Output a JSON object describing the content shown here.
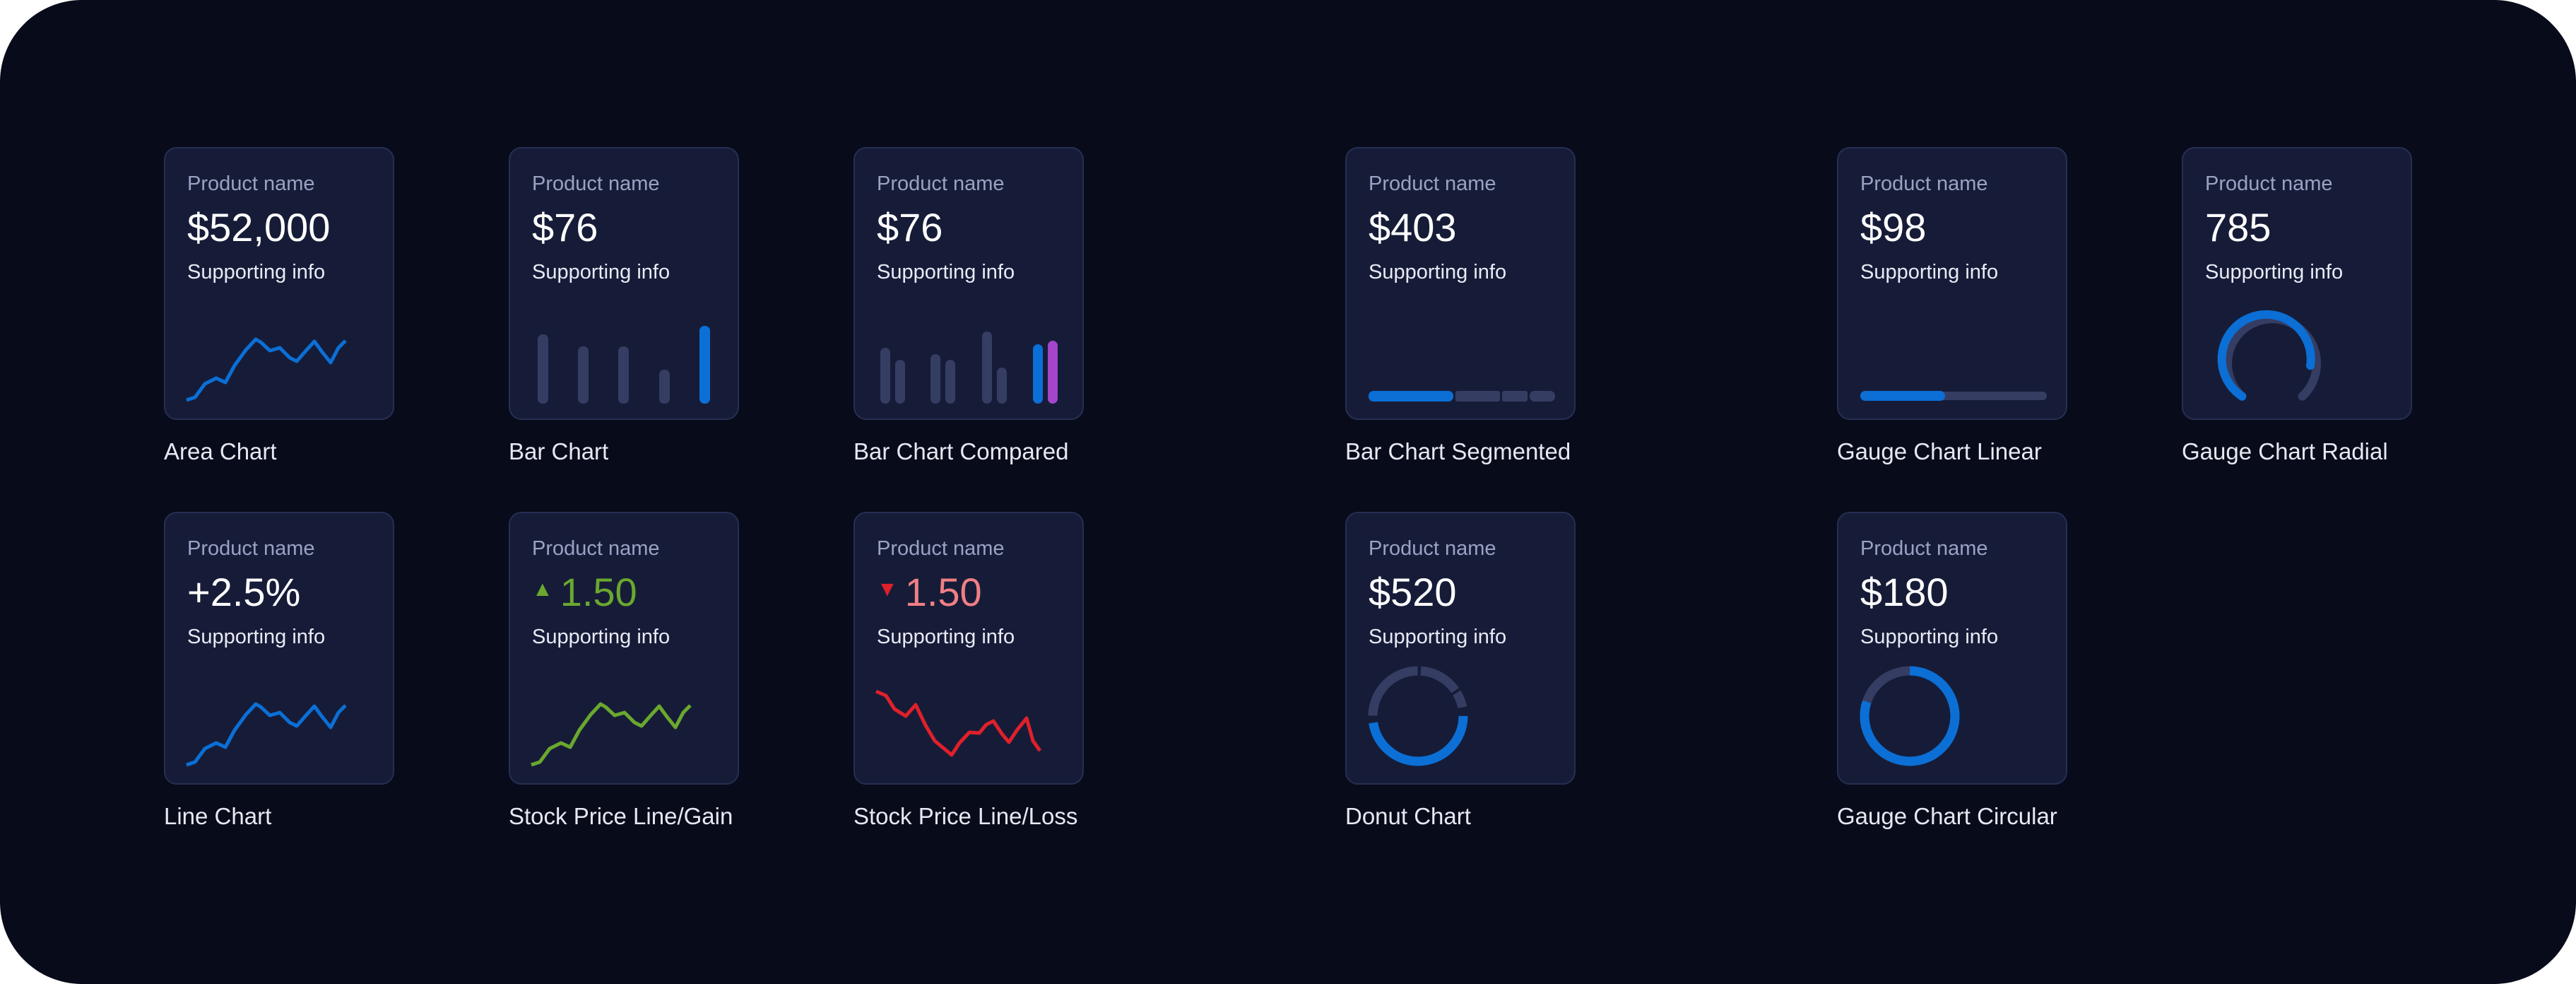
{
  "colors": {
    "background": "#080b1a",
    "card": "#161c38",
    "accent_blue": "#0b6fd6",
    "muted_bar": "#353d63",
    "gain_green": "#6aa82e",
    "loss_red": "#e0202b",
    "loss_text": "#f07f84",
    "compare_purple": "#a346c9"
  },
  "cards": [
    {
      "name": "Product name",
      "value": "$52,000",
      "info": "Supporting info",
      "caption": "Area Chart",
      "chart": "area"
    },
    {
      "name": "Product name",
      "value": "$76",
      "info": "Supporting info",
      "caption": "Bar Chart",
      "chart": "bar",
      "bars": [
        1,
        0.8,
        0.8,
        0.45,
        1.1
      ]
    },
    {
      "name": "Product name",
      "value": "$76",
      "info": "Supporting info",
      "caption": "Bar Chart Compared",
      "chart": "bar-compared"
    },
    {
      "name": "Product name",
      "value": "$403",
      "info": "Supporting info",
      "caption": "Bar Chart Segmented",
      "chart": "bar-segmented",
      "segments": [
        0.45,
        0.23,
        0.14,
        0.13
      ]
    },
    {
      "name": "Product name",
      "value": "$98",
      "info": "Supporting info",
      "caption": "Gauge Chart Linear",
      "chart": "gauge-linear",
      "level": 0.45
    },
    {
      "name": "Product name",
      "value": "785",
      "info": "Supporting info",
      "caption": "Gauge Chart Radial",
      "chart": "gauge-radial",
      "level": 0.78
    },
    {
      "name": "Product name",
      "value": "+2.5%",
      "info": "Supporting info",
      "caption": "Line Chart",
      "chart": "line"
    },
    {
      "name": "Product name",
      "value": "1.50",
      "info": "Supporting info",
      "caption": "Stock Price Line/Gain",
      "chart": "stock-gain",
      "trend": "up"
    },
    {
      "name": "Product name",
      "value": "1.50",
      "info": "Supporting info",
      "caption": "Stock Price Line/Loss",
      "chart": "stock-loss",
      "trend": "down"
    },
    {
      "name": "Product name",
      "value": "$520",
      "info": "Supporting info",
      "caption": "Donut Chart",
      "chart": "donut",
      "slices": [
        0.5,
        0.28,
        0.06,
        0.16
      ]
    },
    {
      "name": "Product name",
      "value": "$180",
      "info": "Supporting info",
      "caption": "Gauge Chart Circular",
      "chart": "gauge-circular",
      "level": 0.8
    }
  ]
}
